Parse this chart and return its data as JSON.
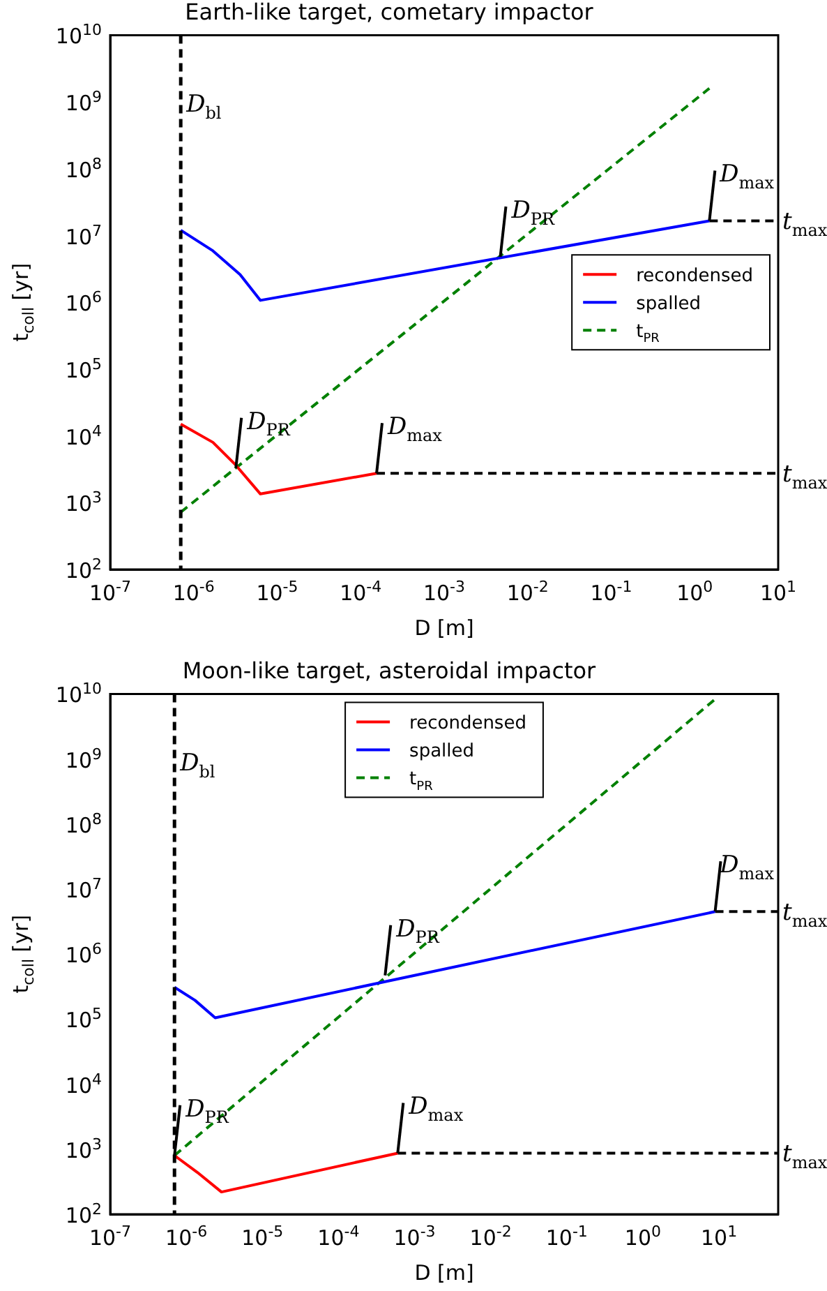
{
  "chart_data": [
    {
      "type": "line",
      "title": "Earth-like target, cometary impactor",
      "xlabel": "D [m]",
      "ylabel": "t$_{coll}$ [yr]",
      "log": "xy",
      "legend": "right",
      "xlim": [
        1e-07,
        10
      ],
      "ylim": [
        100,
        10000000000.0
      ],
      "xticks": [
        {
          "value": 1e-07,
          "label": "10$^{-7}$"
        },
        {
          "value": 1e-06,
          "label": "10$^{-6}$"
        },
        {
          "value": 1e-05,
          "label": "10$^{-5}$"
        },
        {
          "value": 0.0001,
          "label": "10$^{-4}$"
        },
        {
          "value": 0.001,
          "label": "10$^{-3}$"
        },
        {
          "value": 0.01,
          "label": "10$^{-2}$"
        },
        {
          "value": 0.1,
          "label": "10$^{-1}$"
        },
        {
          "value": 1,
          "label": "10$^{0}$"
        },
        {
          "value": 10,
          "label": "10$^{1}$"
        }
      ],
      "yticks": [
        {
          "value": 100,
          "label": "10$^{2}$"
        },
        {
          "value": 1000,
          "label": "10$^{3}$"
        },
        {
          "value": 10000,
          "label": "10$^{4}$"
        },
        {
          "value": 100000,
          "label": "10$^{5}$"
        },
        {
          "value": 1000000,
          "label": "10$^{6}$"
        },
        {
          "value": 10000000,
          "label": "10$^{7}$"
        },
        {
          "value": 100000000,
          "label": "10$^{8}$"
        },
        {
          "value": 1000000000,
          "label": "10$^{9}$"
        },
        {
          "value": 10000000000,
          "label": "10$^{10}$"
        }
      ],
      "series": [
        {
          "name": "recondensed",
          "color": "#ff0000",
          "x": [
            7e-07,
            1.7e-06,
            3.1e-06,
            6.3e-06,
            0.000155
          ],
          "values": [
            15000,
            8000,
            3800,
            1350,
            2750
          ]
        },
        {
          "name": "spalled",
          "color": "#0000ff",
          "x": [
            7e-07,
            1.7e-06,
            3.6e-06,
            6.3e-06,
            1.5
          ],
          "values": [
            12000000,
            5900000,
            2600000,
            1070000,
            16600000
          ]
        },
        {
          "name": "t$_{PR}$",
          "color": "#008000",
          "line_style": "dashed",
          "x": [
            7e-07,
            1.5
          ],
          "values": [
            720,
            1600000000
          ]
        },
        {
          "color": "#000000",
          "line_style": "dashed",
          "x": [
            1.5,
            10
          ],
          "values": [
            16600000,
            16600000
          ]
        },
        {
          "color": "#000000",
          "line_style": "dashed",
          "x": [
            0.000155,
            10
          ],
          "values": [
            2750,
            2750
          ]
        }
      ],
      "ref_lines": [
        {
          "axis": "x",
          "value": 7e-07,
          "label": "D$_{bl}$",
          "color": "#000000",
          "line_style": "dashed"
        }
      ],
      "annotations": [
        {
          "text": "D$_{PR}$",
          "x": 0.0047,
          "y": 4800000
        },
        {
          "text": "D$_{max}$",
          "x": 1.5,
          "y": 16600000
        },
        {
          "text": "D$_{PR}$",
          "x": 3.2e-06,
          "y": 3300
        },
        {
          "text": "D$_{max}$",
          "x": 0.000155,
          "y": 2750
        },
        {
          "text": "t$_{max}$",
          "x": 10,
          "y": 16600000
        },
        {
          "text": "t$_{max}$",
          "x": 10,
          "y": 2750
        }
      ]
    },
    {
      "type": "line",
      "title": "Moon-like target, asteroidal impactor",
      "xlabel": "D [m]",
      "ylabel": "t$_{coll}$ [yr]",
      "log": "xy",
      "legend": "top",
      "xlim": [
        1e-07,
        60
      ],
      "ylim": [
        100,
        10000000000.0
      ],
      "xticks": [
        {
          "value": 1e-07,
          "label": "10$^{-7}$"
        },
        {
          "value": 1e-06,
          "label": "10$^{-6}$"
        },
        {
          "value": 1e-05,
          "label": "10$^{-5}$"
        },
        {
          "value": 0.0001,
          "label": "10$^{-4}$"
        },
        {
          "value": 0.001,
          "label": "10$^{-3}$"
        },
        {
          "value": 0.01,
          "label": "10$^{-2}$"
        },
        {
          "value": 0.1,
          "label": "10$^{-1}$"
        },
        {
          "value": 1,
          "label": "10$^{0}$"
        },
        {
          "value": 10,
          "label": "10$^{1}$"
        }
      ],
      "yticks": [
        {
          "value": 100,
          "label": "10$^{2}$"
        },
        {
          "value": 1000,
          "label": "10$^{3}$"
        },
        {
          "value": 10000,
          "label": "10$^{4}$"
        },
        {
          "value": 100000,
          "label": "10$^{5}$"
        },
        {
          "value": 1000000,
          "label": "10$^{6}$"
        },
        {
          "value": 10000000,
          "label": "10$^{7}$"
        },
        {
          "value": 100000000,
          "label": "10$^{8}$"
        },
        {
          "value": 1000000000,
          "label": "10$^{9}$"
        },
        {
          "value": 10000000000,
          "label": "10$^{10}$"
        }
      ],
      "series": [
        {
          "name": "recondensed",
          "color": "#ff0000",
          "x": [
            7e-07,
            1.4e-06,
            2.9e-06,
            0.0006
          ],
          "values": [
            800,
            440,
            220,
            870
          ]
        },
        {
          "name": "spalled",
          "color": "#0000ff",
          "x": [
            7e-07,
            1.3e-06,
            2.4e-06,
            8.9
          ],
          "values": [
            310000,
            195000,
            105000,
            4500000
          ]
        },
        {
          "name": "t$_{PR}$",
          "color": "#008000",
          "line_style": "dashed",
          "x": [
            7e-07,
            8.9
          ],
          "values": [
            800,
            8300000000
          ]
        },
        {
          "color": "#000000",
          "line_style": "dashed",
          "x": [
            8.9,
            60
          ],
          "values": [
            4500000,
            4500000
          ]
        },
        {
          "color": "#000000",
          "line_style": "dashed",
          "x": [
            0.0006,
            60
          ],
          "values": [
            870,
            870
          ]
        }
      ],
      "ref_lines": [
        {
          "axis": "x",
          "value": 7e-07,
          "label": "D$_{bl}$",
          "color": "#000000",
          "line_style": "dashed"
        }
      ],
      "annotations": [
        {
          "text": "D$_{PR}$",
          "x": 0.00041,
          "y": 470000
        },
        {
          "text": "D$_{PR}$",
          "x": 7e-07,
          "y": 800
        },
        {
          "text": "D$_{max}$",
          "x": 8.9,
          "y": 4500000
        },
        {
          "text": "D$_{max}$",
          "x": 0.0006,
          "y": 870
        },
        {
          "text": "t$_{max}$",
          "x": 60,
          "y": 4500000
        },
        {
          "text": "t$_{max}$",
          "x": 60,
          "y": 870
        }
      ]
    }
  ]
}
